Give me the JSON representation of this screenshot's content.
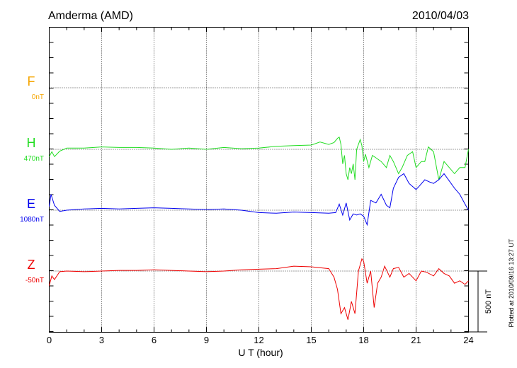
{
  "chart_data": {
    "type": "line",
    "station": "Amderma (AMD)",
    "date": "2010/04/03",
    "xlabel": "U T (hour)",
    "x_ticks": [
      "0",
      "3",
      "6",
      "9",
      "12",
      "15",
      "18",
      "21",
      "24"
    ],
    "xlim": [
      0,
      24
    ],
    "scale_bar_label": "500 nT",
    "plotted_note": "Plotted at 2010/09/16 13:27 UT",
    "grid": "dotted",
    "series": [
      {
        "name": "F",
        "baseline_label": "0nT",
        "color": "#f5a500",
        "x": [],
        "values": []
      },
      {
        "name": "H",
        "baseline_label": "470nT",
        "color": "#22dd22",
        "x": [
          0,
          0.15,
          0.3,
          0.6,
          1,
          2,
          3,
          4,
          5,
          6,
          7,
          8,
          9,
          10,
          11,
          12,
          13,
          14,
          15,
          15.5,
          16,
          16.3,
          16.5,
          16.6,
          16.7,
          16.8,
          16.9,
          17.0,
          17.1,
          17.2,
          17.3,
          17.4,
          17.5,
          17.6,
          17.7,
          17.8,
          17.9,
          18.0,
          18.1,
          18.3,
          18.5,
          18.7,
          19.0,
          19.3,
          19.5,
          19.7,
          20.0,
          20.2,
          20.5,
          20.8,
          21.0,
          21.3,
          21.5,
          21.7,
          22.0,
          22.3,
          22.6,
          22.9,
          23.2,
          23.5,
          23.8,
          24.0
        ],
        "values": [
          -60,
          -20,
          -60,
          -15,
          10,
          10,
          20,
          15,
          15,
          10,
          0,
          10,
          0,
          15,
          5,
          10,
          25,
          30,
          35,
          60,
          40,
          55,
          90,
          100,
          40,
          -120,
          -50,
          -200,
          -250,
          -150,
          -200,
          -120,
          -250,
          0,
          40,
          80,
          30,
          -100,
          -40,
          -150,
          -50,
          -70,
          -100,
          -150,
          -50,
          -100,
          -200,
          -150,
          -50,
          -20,
          -150,
          -100,
          -100,
          20,
          -20,
          -250,
          -100,
          -150,
          -200,
          -150,
          -150,
          0
        ]
      },
      {
        "name": "E",
        "baseline_label": "1080nT",
        "color": "#0000ee",
        "x": [
          0,
          0.1,
          0.3,
          0.6,
          1,
          2,
          3,
          4,
          5,
          6,
          7,
          8,
          9,
          10,
          11,
          12,
          13,
          14,
          15,
          16,
          16.4,
          16.6,
          16.8,
          17.0,
          17.2,
          17.4,
          17.6,
          17.8,
          18.0,
          18.2,
          18.4,
          18.7,
          19.0,
          19.3,
          19.5,
          19.7,
          20.0,
          20.3,
          20.6,
          21.0,
          21.2,
          21.5,
          21.8,
          22.0,
          22.3,
          22.6,
          22.9,
          23.2,
          23.5,
          23.8,
          24.0
        ],
        "values": [
          30,
          130,
          40,
          -10,
          0,
          10,
          15,
          10,
          15,
          20,
          15,
          10,
          5,
          10,
          0,
          -20,
          -25,
          -15,
          -20,
          -25,
          -20,
          50,
          -40,
          60,
          -80,
          -30,
          -40,
          -30,
          -50,
          -120,
          80,
          60,
          130,
          40,
          20,
          180,
          270,
          300,
          220,
          170,
          200,
          250,
          230,
          220,
          250,
          300,
          240,
          180,
          130,
          50,
          0
        ]
      },
      {
        "name": "Z",
        "baseline_label": "-50nT",
        "color": "#ee0000",
        "x": [
          0,
          0.15,
          0.3,
          0.6,
          1,
          2,
          3,
          4,
          5,
          6,
          7,
          8,
          9,
          10,
          11,
          12,
          13,
          14,
          15,
          16,
          16.3,
          16.5,
          16.7,
          16.9,
          17.1,
          17.3,
          17.5,
          17.7,
          17.9,
          18.0,
          18.2,
          18.4,
          18.6,
          18.8,
          19.0,
          19.2,
          19.5,
          19.7,
          20.0,
          20.3,
          20.6,
          21.0,
          21.3,
          21.6,
          22.0,
          22.3,
          22.6,
          22.9,
          23.2,
          23.5,
          23.8,
          24.0
        ],
        "values": [
          -120,
          -40,
          -70,
          -5,
          0,
          -5,
          0,
          5,
          5,
          10,
          5,
          0,
          -5,
          0,
          10,
          15,
          20,
          40,
          35,
          20,
          -50,
          -150,
          -350,
          -300,
          -400,
          -250,
          -350,
          0,
          100,
          80,
          -100,
          0,
          -300,
          -100,
          -50,
          40,
          -50,
          20,
          30,
          -50,
          -20,
          -80,
          0,
          -10,
          -40,
          20,
          -20,
          -40,
          -100,
          -80,
          -110,
          -80
        ]
      }
    ]
  }
}
